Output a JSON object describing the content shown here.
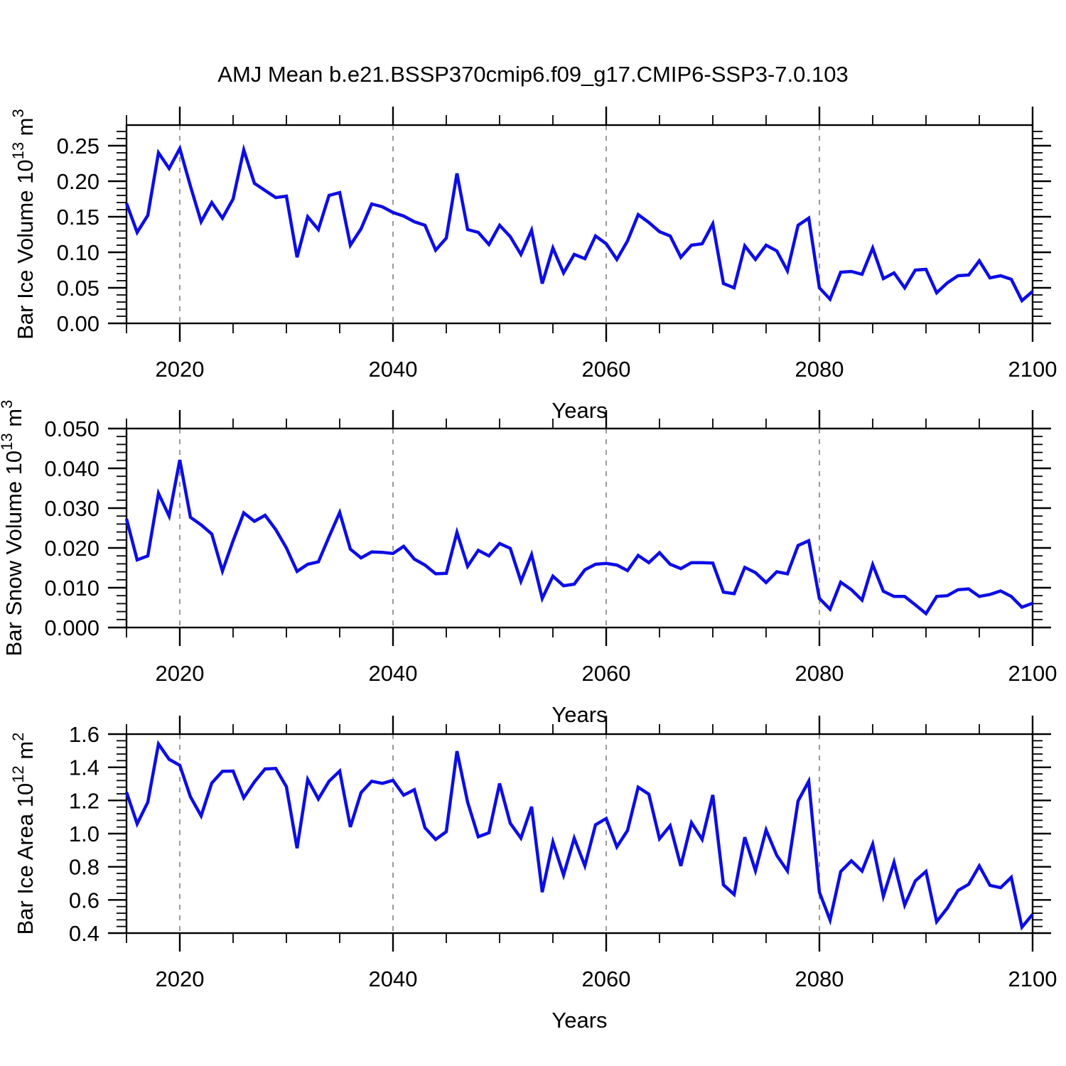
{
  "title": "AMJ Mean b.e21.BSSP370cmip6.f09_g17.CMIP6-SSP3-7.0.103",
  "colors": {
    "line": "#0d0de6",
    "frame": "#000000",
    "grid": "#8f8f8f",
    "text": "#000000",
    "background": "#ffffff"
  },
  "years": [
    2015,
    2016,
    2017,
    2018,
    2019,
    2020,
    2021,
    2022,
    2023,
    2024,
    2025,
    2026,
    2027,
    2028,
    2029,
    2030,
    2031,
    2032,
    2033,
    2034,
    2035,
    2036,
    2037,
    2038,
    2039,
    2040,
    2041,
    2042,
    2043,
    2044,
    2045,
    2046,
    2047,
    2048,
    2049,
    2050,
    2051,
    2052,
    2053,
    2054,
    2055,
    2056,
    2057,
    2058,
    2059,
    2060,
    2061,
    2062,
    2063,
    2064,
    2065,
    2066,
    2067,
    2068,
    2069,
    2070,
    2071,
    2072,
    2073,
    2074,
    2075,
    2076,
    2077,
    2078,
    2079,
    2080,
    2081,
    2082,
    2083,
    2084,
    2085,
    2086,
    2087,
    2088,
    2089,
    2090,
    2091,
    2092,
    2093,
    2094,
    2095,
    2096,
    2097,
    2098,
    2099,
    2100
  ],
  "chart_data": [
    {
      "type": "line",
      "title": "",
      "xlabel": "Years",
      "ylabel": "Bar Ice Volume 10¹³ m³",
      "ylabel_parts": [
        {
          "t": "Bar Ice Volume 10"
        },
        {
          "t": "13",
          "sup": true
        },
        {
          "t": " m"
        },
        {
          "t": "3",
          "sup": true
        }
      ],
      "xlim": [
        2015,
        2100
      ],
      "ylim": [
        0,
        0.279
      ],
      "xticks": [
        2020,
        2040,
        2060,
        2080,
        2100
      ],
      "xtick_labels": [
        "2020",
        "2040",
        "2060",
        "2080",
        "2100"
      ],
      "x_minor_step": 5,
      "yticks": [
        0.0,
        0.05,
        0.1,
        0.15,
        0.2,
        0.25
      ],
      "ytick_labels": [
        "0.00",
        "0.05",
        "0.10",
        "0.15",
        "0.20",
        "0.25"
      ],
      "y_minor_step": 0.01,
      "grid_x": [
        2020,
        2040,
        2060,
        2080
      ],
      "grid_on": true,
      "legend": "none",
      "values": [
        0.169,
        0.128,
        0.152,
        0.24,
        0.218,
        0.246,
        0.193,
        0.143,
        0.17,
        0.148,
        0.175,
        0.244,
        0.197,
        0.187,
        0.177,
        0.179,
        0.093,
        0.15,
        0.132,
        0.18,
        0.184,
        0.11,
        0.133,
        0.168,
        0.164,
        0.156,
        0.151,
        0.143,
        0.138,
        0.103,
        0.12,
        0.211,
        0.132,
        0.128,
        0.111,
        0.138,
        0.122,
        0.097,
        0.131,
        0.056,
        0.106,
        0.071,
        0.097,
        0.091,
        0.123,
        0.112,
        0.09,
        0.116,
        0.153,
        0.142,
        0.129,
        0.123,
        0.093,
        0.11,
        0.112,
        0.14,
        0.056,
        0.05,
        0.109,
        0.09,
        0.11,
        0.102,
        0.074,
        0.138,
        0.148,
        0.05,
        0.034,
        0.072,
        0.073,
        0.069,
        0.106,
        0.063,
        0.071,
        0.05,
        0.075,
        0.076,
        0.043,
        0.057,
        0.067,
        0.068,
        0.088,
        0.064,
        0.067,
        0.062,
        0.032,
        0.045
      ]
    },
    {
      "type": "line",
      "title": "",
      "xlabel": "Years",
      "ylabel": "Bar Snow Volume 10¹³ m³",
      "ylabel_parts": [
        {
          "t": "Bar Snow Volume 10"
        },
        {
          "t": "13",
          "sup": true
        },
        {
          "t": " m"
        },
        {
          "t": "3",
          "sup": true
        }
      ],
      "xlim": [
        2015,
        2100
      ],
      "ylim": [
        0,
        0.05
      ],
      "xticks": [
        2020,
        2040,
        2060,
        2080,
        2100
      ],
      "xtick_labels": [
        "2020",
        "2040",
        "2060",
        "2080",
        "2100"
      ],
      "x_minor_step": 5,
      "yticks": [
        0.0,
        0.01,
        0.02,
        0.03,
        0.04,
        0.05
      ],
      "ytick_labels": [
        "0.000",
        "0.010",
        "0.020",
        "0.030",
        "0.040",
        "0.050"
      ],
      "y_minor_step": 0.002,
      "grid_x": [
        2020,
        2040,
        2060,
        2080
      ],
      "grid_on": true,
      "legend": "none",
      "values": [
        0.0273,
        0.017,
        0.018,
        0.0337,
        0.028,
        0.0421,
        0.0277,
        0.0258,
        0.0235,
        0.0142,
        0.0218,
        0.0288,
        0.0267,
        0.0282,
        0.0246,
        0.02,
        0.0141,
        0.0159,
        0.0165,
        0.0228,
        0.0289,
        0.0197,
        0.0175,
        0.019,
        0.0189,
        0.0186,
        0.0204,
        0.0172,
        0.0157,
        0.0135,
        0.0136,
        0.0239,
        0.0154,
        0.0194,
        0.018,
        0.0211,
        0.0199,
        0.0116,
        0.0183,
        0.0073,
        0.0129,
        0.0105,
        0.0109,
        0.0145,
        0.0159,
        0.0161,
        0.0157,
        0.0143,
        0.0181,
        0.0163,
        0.0188,
        0.0159,
        0.0148,
        0.0163,
        0.0163,
        0.0162,
        0.0089,
        0.0085,
        0.0151,
        0.0138,
        0.0113,
        0.014,
        0.0135,
        0.0206,
        0.0218,
        0.0073,
        0.0046,
        0.0114,
        0.0095,
        0.0069,
        0.0158,
        0.0091,
        0.0078,
        0.0078,
        0.0057,
        0.0035,
        0.0078,
        0.008,
        0.0095,
        0.0097,
        0.0078,
        0.0083,
        0.0092,
        0.0078,
        0.0051,
        0.0061
      ]
    },
    {
      "type": "line",
      "title": "",
      "xlabel": "Years",
      "ylabel": "Bar Ice Area 10¹² m²",
      "ylabel_parts": [
        {
          "t": "Bar Ice Area 10"
        },
        {
          "t": "12",
          "sup": true
        },
        {
          "t": " m"
        },
        {
          "t": "2",
          "sup": true
        }
      ],
      "xlim": [
        2015,
        2100
      ],
      "ylim": [
        0.4,
        1.6
      ],
      "xticks": [
        2020,
        2040,
        2060,
        2080,
        2100
      ],
      "xtick_labels": [
        "2020",
        "2040",
        "2060",
        "2080",
        "2100"
      ],
      "x_minor_step": 5,
      "yticks": [
        0.4,
        0.6,
        0.8,
        1.0,
        1.2,
        1.4,
        1.6
      ],
      "ytick_labels": [
        "0.4",
        "0.6",
        "0.8",
        "1.0",
        "1.2",
        "1.4",
        "1.6"
      ],
      "y_minor_step": 0.04,
      "grid_x": [
        2020,
        2040,
        2060,
        2080
      ],
      "grid_on": true,
      "legend": "none",
      "values": [
        1.25,
        1.059,
        1.19,
        1.54,
        1.448,
        1.412,
        1.222,
        1.107,
        1.305,
        1.376,
        1.377,
        1.216,
        1.312,
        1.39,
        1.393,
        1.283,
        0.912,
        1.326,
        1.209,
        1.316,
        1.377,
        1.04,
        1.247,
        1.316,
        1.303,
        1.321,
        1.232,
        1.265,
        1.035,
        0.965,
        1.012,
        1.497,
        1.19,
        0.981,
        1.005,
        1.302,
        1.062,
        0.973,
        1.162,
        0.647,
        0.95,
        0.75,
        0.972,
        0.806,
        1.053,
        1.091,
        0.92,
        1.019,
        1.28,
        1.238,
        0.969,
        1.048,
        0.805,
        1.066,
        0.965,
        1.233,
        0.691,
        0.633,
        0.978,
        0.776,
        1.022,
        0.869,
        0.775,
        1.197,
        1.316,
        0.647,
        0.479,
        0.771,
        0.836,
        0.774,
        0.936,
        0.622,
        0.827,
        0.569,
        0.715,
        0.772,
        0.469,
        0.551,
        0.657,
        0.694,
        0.805,
        0.688,
        0.674,
        0.736,
        0.436,
        0.513
      ]
    }
  ]
}
